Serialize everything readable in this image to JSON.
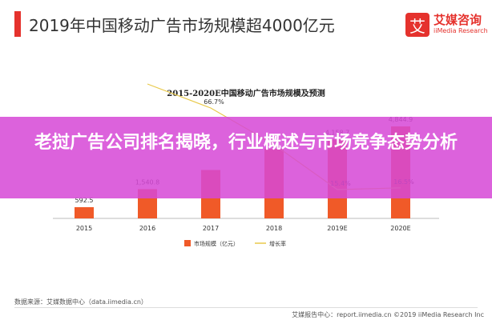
{
  "header": {
    "title": "2019年中国移动广告市场规模超4000亿元",
    "logo_glyph": "艾",
    "logo_cn": "艾媒咨询",
    "logo_en": "iiMedia Research"
  },
  "chart_data": {
    "type": "bar",
    "title": "2015-2020E中国移动广告市场规模及预测",
    "categories": [
      "2015",
      "2016",
      "2017",
      "2018",
      "2019E",
      "2020E"
    ],
    "series": [
      {
        "name": "市场规模（亿元）",
        "values": [
          592.5,
          1540.8,
          2549,
          3663,
          4158.7,
          4844.9
        ],
        "labels": [
          "592.5",
          "1,540.8",
          "",
          "",
          "4,158.7",
          "4,844.9"
        ],
        "color": "#f05a28"
      },
      {
        "name": "增长率",
        "values": [
          null,
          160.0,
          66.7,
          43.7,
          15.4,
          16.5
        ],
        "labels": [
          "",
          "",
          "66.7%",
          "",
          "15.4%",
          "16.5%"
        ],
        "color": "#e8c94a"
      }
    ],
    "grid": false,
    "legend": "bottom"
  },
  "overlay": {
    "text": "老挝广告公司排名揭晓，行业概述与市场竞争态势分析"
  },
  "footer": {
    "source": "数据来源：艾媒数据中心（data.iimedia.cn）",
    "report": "艾媒报告中心：report.iimedia.cn  ©2019  iiMedia Research Inc"
  }
}
